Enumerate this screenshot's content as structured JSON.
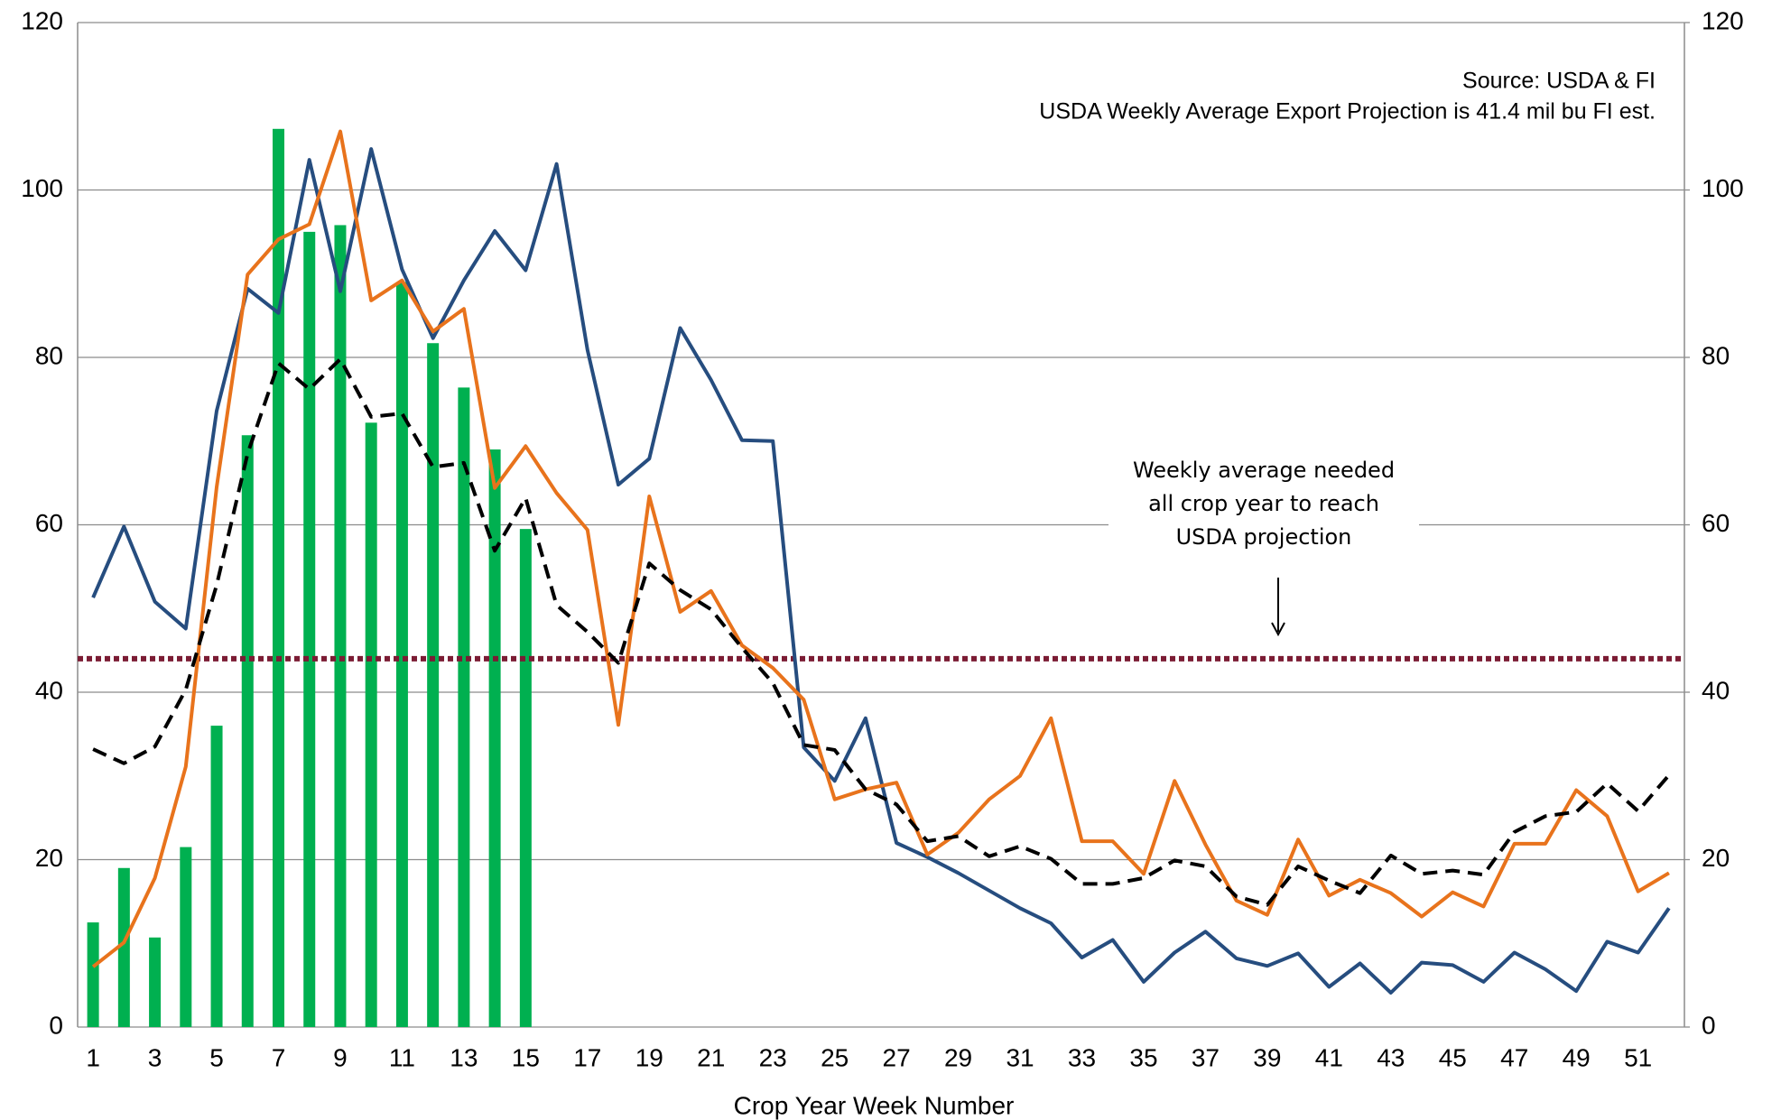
{
  "chart_data": {
    "type": "combo",
    "x_label": "Crop Year Week Number",
    "annotations": {
      "source": [
        "Source: USDA & FI",
        "USDA Weekly Average Export Projection is 41.4 mil bu FI est."
      ],
      "note": [
        "Weekly average needed",
        "all crop year to reach",
        "USDA projection"
      ]
    },
    "categories": [
      1,
      null,
      3,
      null,
      5,
      null,
      7,
      null,
      9,
      null,
      11,
      null,
      13,
      null,
      15,
      null,
      17,
      null,
      19,
      null,
      21,
      null,
      23,
      null,
      25,
      null,
      27,
      null,
      29,
      null,
      31,
      null,
      33,
      null,
      35,
      null,
      37,
      null,
      39,
      null,
      41,
      null,
      43,
      null,
      45,
      null,
      47,
      null,
      49,
      null,
      51,
      null
    ],
    "ylim": [
      0,
      120
    ],
    "yticks": [
      0,
      20,
      40,
      60,
      80,
      100,
      120
    ],
    "y2lim": [
      0,
      120
    ],
    "y2ticks": [
      0,
      20,
      40,
      60,
      80,
      100,
      120
    ],
    "grid": true,
    "reference_line": {
      "value": 44,
      "color": "#7b1c34"
    },
    "series": [
      {
        "type": "bar",
        "color": "#00b050",
        "values": [
          12.5,
          19,
          10.7,
          21.5,
          36,
          70.7,
          107.3,
          95,
          95.8,
          72.2,
          89,
          81.7,
          76.4,
          69,
          59.5,
          null,
          null,
          null,
          null,
          null,
          null,
          null,
          null,
          null,
          null,
          null,
          null,
          null,
          null,
          null,
          null,
          null,
          null,
          null,
          null,
          null,
          null,
          null,
          null,
          null,
          null,
          null,
          null,
          null,
          null,
          null,
          null,
          null,
          null,
          null,
          null,
          null
        ]
      },
      {
        "type": "line",
        "color": "#264d7f",
        "dash": "solid",
        "values": [
          51.3,
          59.8,
          50.8,
          47.6,
          73.6,
          88.2,
          85.3,
          103.6,
          87.9,
          104.9,
          90.5,
          82.3,
          89.2,
          95.1,
          90.4,
          103.1,
          80.9,
          64.8,
          67.9,
          83.5,
          77.3,
          70.1,
          70.0,
          33.4,
          29.4,
          36.9,
          22.0,
          20.3,
          18.4,
          16.3,
          14.2,
          12.4,
          8.3,
          10.4,
          5.4,
          8.9,
          11.4,
          8.2,
          7.3,
          8.8,
          4.8,
          7.6,
          4.1,
          7.7,
          7.4,
          5.4,
          8.9,
          6.9,
          4.3,
          10.2,
          8.9,
          14.2
        ]
      },
      {
        "type": "line",
        "color": "#e8731c",
        "dash": "solid",
        "values": [
          7.2,
          10.1,
          17.8,
          31.1,
          64.5,
          89.9,
          94.1,
          95.9,
          107,
          86.8,
          89.2,
          83.1,
          85.8,
          64.4,
          69.4,
          63.8,
          59.4,
          36.1,
          63.4,
          49.6,
          52.1,
          45.6,
          42.9,
          39.1,
          27.2,
          28.4,
          29.2,
          20.6,
          23.2,
          27.2,
          30.0,
          36.9,
          22.2,
          22.2,
          18.3,
          29.4,
          21.8,
          15.1,
          13.4,
          22.4,
          15.7,
          17.6,
          16.0,
          13.2,
          16.1,
          14.4,
          21.9,
          21.9,
          28.3,
          25.2,
          16.2,
          18.4
        ]
      },
      {
        "type": "line",
        "color": "#000000",
        "dash": "dashed",
        "values": [
          33.2,
          31.5,
          33.5,
          40.3,
          52.8,
          68.5,
          79.3,
          76.2,
          79.8,
          72.9,
          73.3,
          66.9,
          67.4,
          56.9,
          63.2,
          50.4,
          47.2,
          43.5,
          55.4,
          52.2,
          49.9,
          45.3,
          41.1,
          33.7,
          33.1,
          28.4,
          26.6,
          22.2,
          22.8,
          20.4,
          21.6,
          20.1,
          17.1,
          17.1,
          17.8,
          19.9,
          19.2,
          15.6,
          14.6,
          19.2,
          17.5,
          16.0,
          20.5,
          18.3,
          18.7,
          18.2,
          23.3,
          25.2,
          25.7,
          29.1,
          25.8,
          30.1
        ]
      }
    ]
  }
}
